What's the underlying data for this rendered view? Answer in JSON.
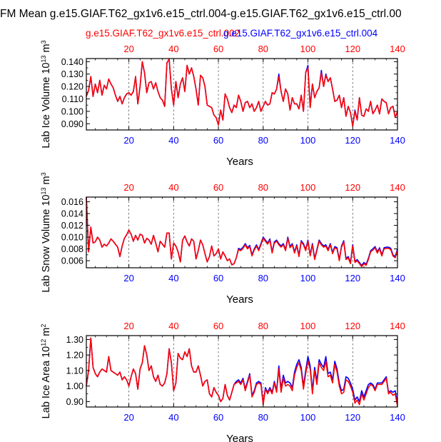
{
  "figure": {
    "title": "FM Mean g.e15.GIAF.T62_gx1v6.e15_ctrl.004-g.e15.GIAF.T62_gx1v6.e15_ctrl.00",
    "legend": [
      {
        "label": "g.e15.GIAF.T62_gx1v6.e15_ctrl.002",
        "color": "#ff0000"
      },
      {
        "label": "g.e15.GIAF.T62_gx1v6.e15_ctrl.004",
        "color": "#0000ff"
      }
    ]
  },
  "chart_data": [
    {
      "type": "line",
      "id": "ice-volume",
      "ylabel": "Lab Ice Volume 10^13 m^3",
      "ylabel_parts": [
        "Lab Ice Volume 10",
        "13",
        " m",
        "3"
      ],
      "xlabel": "Years",
      "xlim": [
        1,
        140
      ],
      "ylim": [
        0.085,
        0.1425
      ],
      "xticks": [
        20,
        40,
        60,
        80,
        100,
        120,
        140
      ],
      "xtick_labels": [
        "20",
        "40",
        "60",
        "80",
        "100",
        "120",
        "140"
      ],
      "yticks": [
        0.09,
        0.1,
        0.11,
        0.12,
        0.13,
        0.14
      ],
      "ytick_labels": [
        "0.090",
        "0.100",
        "0.110",
        "0.120",
        "0.130",
        "0.140"
      ],
      "series": [
        {
          "name": "g.e15.GIAF.T62_gx1v6.e15_ctrl.002",
          "color": "#ff0000",
          "values": [
            0.112,
            0.117,
            0.128,
            0.112,
            0.122,
            0.115,
            0.125,
            0.113,
            0.121,
            0.118,
            0.126,
            0.122,
            0.119,
            0.113,
            0.108,
            0.112,
            0.106,
            0.111,
            0.114,
            0.115,
            0.113,
            0.116,
            0.128,
            0.106,
            0.12,
            0.14,
            0.131,
            0.115,
            0.123,
            0.124,
            0.118,
            0.123,
            0.116,
            0.111,
            0.109,
            0.104,
            0.139,
            0.142,
            0.118,
            0.105,
            0.124,
            0.111,
            0.122,
            0.127,
            0.116,
            0.137,
            0.13,
            0.135,
            0.128,
            0.118,
            0.105,
            0.129,
            0.127,
            0.12,
            0.105,
            0.104,
            0.103,
            0.097,
            0.095,
            0.089,
            0.101,
            0.093,
            0.114,
            0.11,
            0.103,
            0.099,
            0.105,
            0.103,
            0.113,
            0.108,
            0.1,
            0.107,
            0.108,
            0.103,
            0.106,
            0.1,
            0.103,
            0.108,
            0.1,
            0.104,
            0.108,
            0.105,
            0.106,
            0.115,
            0.114,
            0.118,
            0.128,
            0.116,
            0.108,
            0.118,
            0.114,
            0.101,
            0.111,
            0.106,
            0.106,
            0.102,
            0.113,
            0.1,
            0.131,
            0.135,
            0.103,
            0.122,
            0.111,
            0.116,
            0.119,
            0.131,
            0.12,
            0.129,
            0.124,
            0.127,
            0.118,
            0.108,
            0.109,
            0.113,
            0.103,
            0.111,
            0.096,
            0.104,
            0.099,
            0.088,
            0.1,
            0.093,
            0.111,
            0.097,
            0.096,
            0.102,
            0.1,
            0.108,
            0.098,
            0.101,
            0.105,
            0.098,
            0.11,
            0.108,
            0.107,
            0.098,
            0.103,
            0.104,
            0.095,
            0.1
          ]
        },
        {
          "name": "g.e15.GIAF.T62_gx1v6.e15_ctrl.004",
          "color": "#0000ff",
          "values": [
            0.112,
            0.117,
            0.128,
            0.112,
            0.122,
            0.115,
            0.125,
            0.113,
            0.121,
            0.118,
            0.126,
            0.122,
            0.119,
            0.113,
            0.108,
            0.112,
            0.106,
            0.111,
            0.114,
            0.115,
            0.113,
            0.116,
            0.128,
            0.106,
            0.12,
            0.14,
            0.131,
            0.115,
            0.123,
            0.124,
            0.118,
            0.123,
            0.116,
            0.111,
            0.109,
            0.104,
            0.139,
            0.142,
            0.118,
            0.105,
            0.124,
            0.111,
            0.122,
            0.127,
            0.116,
            0.137,
            0.13,
            0.135,
            0.128,
            0.118,
            0.105,
            0.129,
            0.127,
            0.12,
            0.105,
            0.104,
            0.103,
            0.097,
            0.095,
            0.089,
            0.101,
            0.093,
            0.114,
            0.11,
            0.103,
            0.099,
            0.105,
            0.103,
            0.113,
            0.108,
            0.1,
            0.107,
            0.108,
            0.103,
            0.106,
            0.1,
            0.103,
            0.108,
            0.1,
            0.104,
            0.108,
            0.105,
            0.106,
            0.115,
            0.114,
            0.118,
            0.13,
            0.116,
            0.108,
            0.118,
            0.114,
            0.101,
            0.111,
            0.106,
            0.106,
            0.102,
            0.113,
            0.1,
            0.131,
            0.137,
            0.103,
            0.122,
            0.111,
            0.116,
            0.119,
            0.133,
            0.12,
            0.13,
            0.124,
            0.127,
            0.118,
            0.108,
            0.109,
            0.113,
            0.103,
            0.111,
            0.096,
            0.104,
            0.099,
            0.088,
            0.101,
            0.093,
            0.111,
            0.097,
            0.096,
            0.102,
            0.1,
            0.108,
            0.098,
            0.101,
            0.105,
            0.098,
            0.11,
            0.108,
            0.107,
            0.098,
            0.103,
            0.104,
            0.095,
            0.1
          ]
        }
      ]
    },
    {
      "type": "line",
      "id": "snow-volume",
      "ylabel": "Lab Snow Volume 10^13 m^3",
      "ylabel_parts": [
        "Lab Snow Volume 10",
        "13",
        " m",
        "3"
      ],
      "xlabel": "Years",
      "xlim": [
        1,
        140
      ],
      "ylim": [
        0.0048,
        0.0168
      ],
      "xticks": [
        20,
        40,
        60,
        80,
        100,
        120,
        140
      ],
      "xtick_labels": [
        "20",
        "40",
        "60",
        "80",
        "100",
        "120",
        "140"
      ],
      "yticks": [
        0.006,
        0.008,
        0.01,
        0.012,
        0.014,
        0.016
      ],
      "ytick_labels": [
        "0.006",
        "0.008",
        "0.010",
        "0.012",
        "0.014",
        "0.016"
      ],
      "series": [
        {
          "name": "g.e15.GIAF.T62_gx1v6.e15_ctrl.002",
          "color": "#ff0000",
          "values": [
            0.0168,
            0.0075,
            0.0117,
            0.009,
            0.0092,
            0.01,
            0.0095,
            0.0083,
            0.0088,
            0.0085,
            0.009,
            0.0097,
            0.0093,
            0.0088,
            0.0083,
            0.0067,
            0.0085,
            0.0098,
            0.0104,
            0.0112,
            0.0105,
            0.0093,
            0.0103,
            0.0095,
            0.0105,
            0.0103,
            0.009,
            0.0098,
            0.0095,
            0.0088,
            0.0103,
            0.009,
            0.0075,
            0.0093,
            0.0088,
            0.0083,
            0.0107,
            0.0107,
            0.0063,
            0.009,
            0.0085,
            0.0075,
            0.0058,
            0.0095,
            0.0102,
            0.0092,
            0.0085,
            0.0097,
            0.0093,
            0.0063,
            0.0077,
            0.0095,
            0.0087,
            0.0072,
            0.0058,
            0.0067,
            0.0085,
            0.0068,
            0.0072,
            0.008,
            0.0063,
            0.0075,
            0.0068,
            0.006,
            0.0063,
            0.0053,
            0.0055,
            0.0065,
            0.0079,
            0.0077,
            0.0081,
            0.0087,
            0.008,
            0.0084,
            0.0068,
            0.0078,
            0.0085,
            0.0077,
            0.0087,
            0.0098,
            0.0093,
            0.0088,
            0.0095,
            0.0073,
            0.009,
            0.0093,
            0.0087,
            0.0083,
            0.0087,
            0.0077,
            0.0098,
            0.0082,
            0.0087,
            0.0073,
            0.0085,
            0.0067,
            0.0092,
            0.0087,
            0.0077,
            0.0093,
            0.0068,
            0.0087,
            0.0062,
            0.0077,
            0.0093,
            0.0087,
            0.0083,
            0.0085,
            0.0077,
            0.0087,
            0.0072,
            0.0082,
            0.008,
            0.006,
            0.0083,
            0.0092,
            0.0062,
            0.0065,
            0.0055,
            0.0085,
            0.0057,
            0.006,
            0.0055,
            0.005,
            0.0055,
            0.0052,
            0.0062,
            0.0075,
            0.0078,
            0.0082,
            0.0073,
            0.008,
            0.0068,
            0.008,
            0.0081,
            0.0081,
            0.0079,
            0.0068,
            0.0065,
            0.0078
          ]
        },
        {
          "name": "g.e15.GIAF.T62_gx1v6.e15_ctrl.004",
          "color": "#0000ff",
          "values": [
            0.0168,
            0.0075,
            0.0117,
            0.009,
            0.0092,
            0.01,
            0.0095,
            0.0083,
            0.0088,
            0.0085,
            0.009,
            0.0097,
            0.0093,
            0.0088,
            0.0083,
            0.0067,
            0.0085,
            0.0098,
            0.0104,
            0.0112,
            0.0105,
            0.0093,
            0.0103,
            0.0095,
            0.0105,
            0.0103,
            0.009,
            0.0098,
            0.0095,
            0.0088,
            0.0103,
            0.009,
            0.0075,
            0.0093,
            0.0088,
            0.0083,
            0.0107,
            0.0107,
            0.0063,
            0.009,
            0.0085,
            0.0075,
            0.0058,
            0.0095,
            0.0102,
            0.0092,
            0.0085,
            0.0097,
            0.0093,
            0.0063,
            0.0077,
            0.0095,
            0.0087,
            0.0072,
            0.0058,
            0.0067,
            0.0085,
            0.0068,
            0.0072,
            0.008,
            0.0063,
            0.0075,
            0.0068,
            0.006,
            0.0063,
            0.0053,
            0.0055,
            0.0065,
            0.0081,
            0.0079,
            0.0083,
            0.0089,
            0.0082,
            0.0086,
            0.007,
            0.008,
            0.0087,
            0.0079,
            0.0089,
            0.01,
            0.0095,
            0.009,
            0.0097,
            0.0075,
            0.0092,
            0.0095,
            0.0089,
            0.0085,
            0.0089,
            0.0079,
            0.01,
            0.0084,
            0.0089,
            0.0075,
            0.0087,
            0.0069,
            0.0094,
            0.0089,
            0.0079,
            0.0095,
            0.007,
            0.0089,
            0.0064,
            0.0079,
            0.0095,
            0.0089,
            0.0085,
            0.0087,
            0.0079,
            0.0089,
            0.0074,
            0.0084,
            0.0082,
            0.0062,
            0.0085,
            0.0094,
            0.0064,
            0.0067,
            0.0057,
            0.0087,
            0.0059,
            0.0062,
            0.0057,
            0.0052,
            0.0057,
            0.0054,
            0.0064,
            0.0077,
            0.008,
            0.0084,
            0.0075,
            0.0082,
            0.007,
            0.0082,
            0.0083,
            0.0083,
            0.0081,
            0.007,
            0.0067,
            0.008
          ]
        }
      ]
    },
    {
      "type": "line",
      "id": "ice-area",
      "ylabel": "Lab Ice Area 10^12 m^2",
      "ylabel_parts": [
        "Lab Ice Area 10",
        "12",
        " m",
        "2"
      ],
      "xlabel": "Years",
      "xlim": [
        1,
        140
      ],
      "ylim": [
        0.865,
        1.325
      ],
      "xticks": [
        20,
        40,
        60,
        80,
        100,
        120,
        140
      ],
      "xtick_labels": [
        "20",
        "40",
        "60",
        "80",
        "100",
        "120",
        "140"
      ],
      "yticks": [
        0.9,
        1.0,
        1.1,
        1.2,
        1.3
      ],
      "ytick_labels": [
        "0.90",
        "1.00",
        "1.10",
        "1.20",
        "1.30"
      ],
      "series": [
        {
          "name": "g.e15.GIAF.T62_gx1v6.e15_ctrl.002",
          "color": "#ff0000",
          "values": [
            1.0,
            1.1,
            1.31,
            1.12,
            1.08,
            1.06,
            1.09,
            1.11,
            1.1,
            1.09,
            1.19,
            1.1,
            1.09,
            1.08,
            1.07,
            1.09,
            1.04,
            1.06,
            1.04,
            1.0,
            1.06,
            1.11,
            1.08,
            0.98,
            1.11,
            1.15,
            1.26,
            1.2,
            1.1,
            1.13,
            1.06,
            1.03,
            1.07,
            1.01,
            1.0,
            1.02,
            1.08,
            1.24,
            1.15,
            0.97,
            1.02,
            1.21,
            1.18,
            1.17,
            1.22,
            1.19,
            1.24,
            1.13,
            1.09,
            1.09,
            1.13,
            1.07,
            1.0,
            1.03,
            1.04,
            0.95,
            0.93,
            0.99,
            0.96,
            0.94,
            0.9,
            0.92,
            1.01,
            0.94,
            0.91,
            0.96,
            1.01,
            1.02,
            1.03,
            1.01,
            1.04,
            0.97,
            1.02,
            1.07,
            0.93,
            0.96,
            1.01,
            1.02,
            1.01,
            0.88,
            0.98,
            0.95,
            0.98,
            0.95,
            1.02,
            0.96,
            1.11,
            0.96,
            1.05,
            1.0,
            1.01,
            1.0,
            0.97,
            1.07,
            1.12,
            1.15,
            1.1,
            0.98,
            1.08,
            1.16,
            1.11,
            0.95,
            1.1,
            1.01,
            1.15,
            1.12,
            1.1,
            1.16,
            1.06,
            1.07,
            1.02,
            1.14,
            1.09,
            1.0,
            0.95,
            0.96,
            1.04,
            1.03,
            1.0,
            0.96,
            0.89,
            0.91,
            0.88,
            0.95,
            0.91,
            0.95,
            0.99,
            1.01,
            1.0,
            0.97,
            1.01,
            1.01,
            1.01,
            1.03,
            1.05,
            0.95,
            0.96,
            0.94,
            0.95,
            0.87
          ]
        },
        {
          "name": "g.e15.GIAF.T62_gx1v6.e15_ctrl.004",
          "color": "#0000ff",
          "values": [
            1.0,
            1.1,
            1.31,
            1.12,
            1.08,
            1.06,
            1.09,
            1.11,
            1.1,
            1.09,
            1.19,
            1.1,
            1.09,
            1.08,
            1.07,
            1.09,
            1.04,
            1.06,
            1.04,
            1.0,
            1.06,
            1.11,
            1.08,
            0.98,
            1.11,
            1.15,
            1.26,
            1.2,
            1.1,
            1.13,
            1.06,
            1.03,
            1.07,
            1.01,
            1.0,
            1.02,
            1.08,
            1.24,
            1.15,
            0.97,
            1.02,
            1.21,
            1.18,
            1.17,
            1.22,
            1.19,
            1.24,
            1.13,
            1.09,
            1.09,
            1.13,
            1.07,
            1.0,
            1.03,
            1.04,
            0.95,
            0.93,
            0.99,
            0.96,
            0.94,
            0.9,
            0.92,
            1.01,
            0.94,
            0.91,
            0.96,
            1.01,
            1.03,
            1.04,
            1.02,
            1.05,
            0.98,
            1.03,
            1.08,
            0.94,
            0.97,
            1.02,
            1.03,
            1.02,
            0.89,
            0.99,
            0.96,
            0.99,
            0.96,
            1.03,
            0.97,
            1.13,
            0.98,
            1.07,
            1.02,
            1.03,
            1.02,
            0.99,
            1.09,
            1.14,
            1.17,
            1.12,
            1.0,
            1.1,
            1.19,
            1.13,
            0.97,
            1.12,
            1.03,
            1.17,
            1.14,
            1.12,
            1.19,
            1.08,
            1.09,
            1.04,
            1.16,
            1.11,
            1.02,
            0.97,
            0.98,
            1.06,
            1.05,
            1.02,
            0.98,
            0.91,
            0.93,
            0.9,
            0.97,
            0.93,
            0.97,
            1.01,
            1.02,
            1.01,
            0.98,
            1.02,
            1.02,
            1.02,
            1.04,
            1.06,
            0.96,
            0.97,
            0.96,
            0.97,
            0.89
          ]
        }
      ]
    }
  ]
}
